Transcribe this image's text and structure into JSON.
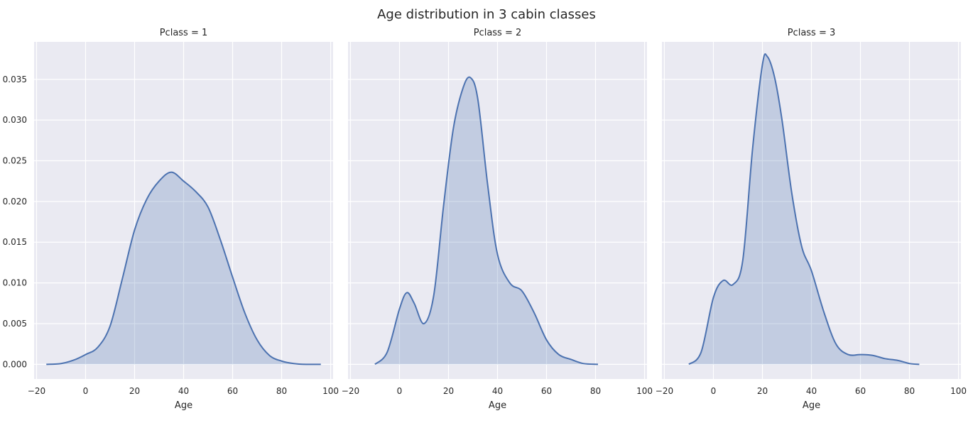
{
  "title": "Age distribution in 3 cabin classes",
  "colors": {
    "line": "#4c72b0",
    "fill": "#4c72b0",
    "panel_bg": "#eaeaf2",
    "grid": "#ffffff",
    "text": "#262626"
  },
  "chart_data": [
    {
      "type": "area",
      "title": "Pclass = 1",
      "xlabel": "Age",
      "ylabel": "",
      "xlim": [
        -21,
        101
      ],
      "ylim": [
        -0.0018,
        0.0396
      ],
      "xticks": [
        -20,
        0,
        20,
        40,
        60,
        80,
        100
      ],
      "yticks": [
        0.0,
        0.005,
        0.01,
        0.015,
        0.02,
        0.025,
        0.03,
        0.035
      ],
      "ytick_labels": [
        "0.000",
        "0.005",
        "0.010",
        "0.015",
        "0.020",
        "0.025",
        "0.030",
        "0.035"
      ],
      "grid": true,
      "x": [
        -16,
        -10,
        -5,
        0,
        5,
        10,
        15,
        20,
        25,
        30,
        35,
        40,
        45,
        50,
        55,
        60,
        65,
        70,
        75,
        80,
        85,
        90,
        96
      ],
      "y": [
        0.0,
        0.0001,
        0.0005,
        0.0012,
        0.0021,
        0.0047,
        0.0105,
        0.0165,
        0.0203,
        0.0225,
        0.0236,
        0.0225,
        0.0212,
        0.0193,
        0.0153,
        0.0107,
        0.0063,
        0.003,
        0.0011,
        0.0004,
        0.0001,
        0.0,
        0.0
      ]
    },
    {
      "type": "area",
      "title": "Pclass = 2",
      "xlabel": "Age",
      "ylabel": "",
      "xlim": [
        -21,
        101
      ],
      "ylim": [
        -0.0018,
        0.0396
      ],
      "xticks": [
        -20,
        0,
        20,
        40,
        60,
        80,
        100
      ],
      "yticks": [
        0.0,
        0.005,
        0.01,
        0.015,
        0.02,
        0.025,
        0.03,
        0.035
      ],
      "grid": true,
      "x": [
        -10,
        -5,
        0,
        3,
        6,
        10,
        14,
        18,
        22,
        26,
        29,
        32,
        36,
        40,
        45,
        50,
        55,
        60,
        65,
        70,
        75,
        81
      ],
      "y": [
        0.0,
        0.0015,
        0.0068,
        0.0088,
        0.0075,
        0.005,
        0.0085,
        0.0195,
        0.029,
        0.034,
        0.0352,
        0.0325,
        0.022,
        0.0135,
        0.01,
        0.009,
        0.0063,
        0.003,
        0.0012,
        0.0006,
        0.0001,
        0.0
      ]
    },
    {
      "type": "area",
      "title": "Pclass = 3",
      "xlabel": "Age",
      "ylabel": "",
      "xlim": [
        -21,
        101
      ],
      "ylim": [
        -0.0018,
        0.0396
      ],
      "xticks": [
        -20,
        0,
        20,
        40,
        60,
        80,
        100
      ],
      "yticks": [
        0.0,
        0.005,
        0.01,
        0.015,
        0.02,
        0.025,
        0.03,
        0.035
      ],
      "grid": true,
      "x": [
        -10,
        -5,
        0,
        4,
        8,
        12,
        16,
        20,
        22,
        25,
        28,
        32,
        36,
        40,
        45,
        50,
        55,
        60,
        65,
        70,
        75,
        80,
        84
      ],
      "y": [
        0.0,
        0.0015,
        0.0082,
        0.0103,
        0.0098,
        0.0128,
        0.0265,
        0.0368,
        0.0378,
        0.0352,
        0.03,
        0.021,
        0.0145,
        0.0115,
        0.0065,
        0.0025,
        0.0012,
        0.0012,
        0.0011,
        0.0007,
        0.0005,
        0.0001,
        0.0
      ]
    }
  ]
}
